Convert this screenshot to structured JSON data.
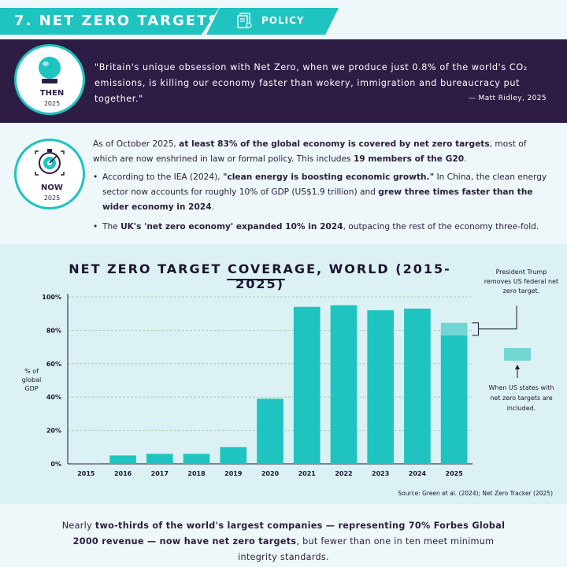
{
  "header": {
    "title": "7. NET ZERO TARGETS",
    "tag": "POLICY"
  },
  "then": {
    "label": "THEN",
    "year": "2025",
    "quote": "\"Britain's unique obsession with Net Zero, when we produce just 0.8% of the world's CO₂ emissions, is killing our economy faster than wokery, immigration and bureaucracy put together.\"",
    "author": "— Matt Ridley, 2025"
  },
  "now": {
    "label": "NOW",
    "year": "2025",
    "intro_1": "As of October 2025, ",
    "intro_bold_1": "at least 83% of the global economy is covered by net zero targets",
    "intro_2": ", most of which are now enshrined in law or formal policy. This includes ",
    "intro_bold_2": "19 members of the G20",
    "intro_3": ".",
    "bullet1_a": "According to the IEA (2024), ",
    "bullet1_bold_1": "\"clean energy is boosting economic growth.\"",
    "bullet1_b": " In China, the clean energy sector now accounts for roughly 10% of GDP (US$1.9 trillion) and ",
    "bullet1_bold_2": "grew three times faster than the wider economy in 2024",
    "bullet1_c": ".",
    "bullet2_a": "The ",
    "bullet2_bold": "UK's 'net zero economy' expanded 10% in 2024",
    "bullet2_b": ", outpacing the rest of the economy three-fold."
  },
  "chart_data": {
    "type": "bar",
    "title": "NET ZERO TARGET COVERAGE, WORLD (2015-2025)",
    "ylabel": "% of global GDP",
    "ylim": [
      0,
      100
    ],
    "yticks": [
      "0%",
      "20%",
      "40%",
      "60%",
      "80%",
      "100%"
    ],
    "grid": true,
    "categories": [
      "2015",
      "2016",
      "2017",
      "2018",
      "2019",
      "2020",
      "2021",
      "2022",
      "2023",
      "2024",
      "2025"
    ],
    "values": [
      0.5,
      5,
      6,
      6,
      10,
      39,
      94,
      95,
      92,
      93,
      77
    ],
    "extra": {
      "category": "2025",
      "value": 7.5,
      "label": "When US states with net zero targets are included."
    },
    "annotation_top": "President Trump removes US federal net zero target.",
    "annotation_bottom": "When US states with net zero targets are included.",
    "source": "Source: Green et al. (2024); Net Zero Tracker (2025)",
    "colors": {
      "bar": "#1fc3c0",
      "extra": "#74d6d2",
      "axis": "#1d1430",
      "grid": "#a9c9a9"
    }
  },
  "footer": {
    "text_a": "Nearly ",
    "bold": "two-thirds of the world's largest companies — representing 70% Forbes Global 2000 revenue — now have net zero targets",
    "text_b": ", but fewer than one in ten meet minimum integrity standards."
  }
}
